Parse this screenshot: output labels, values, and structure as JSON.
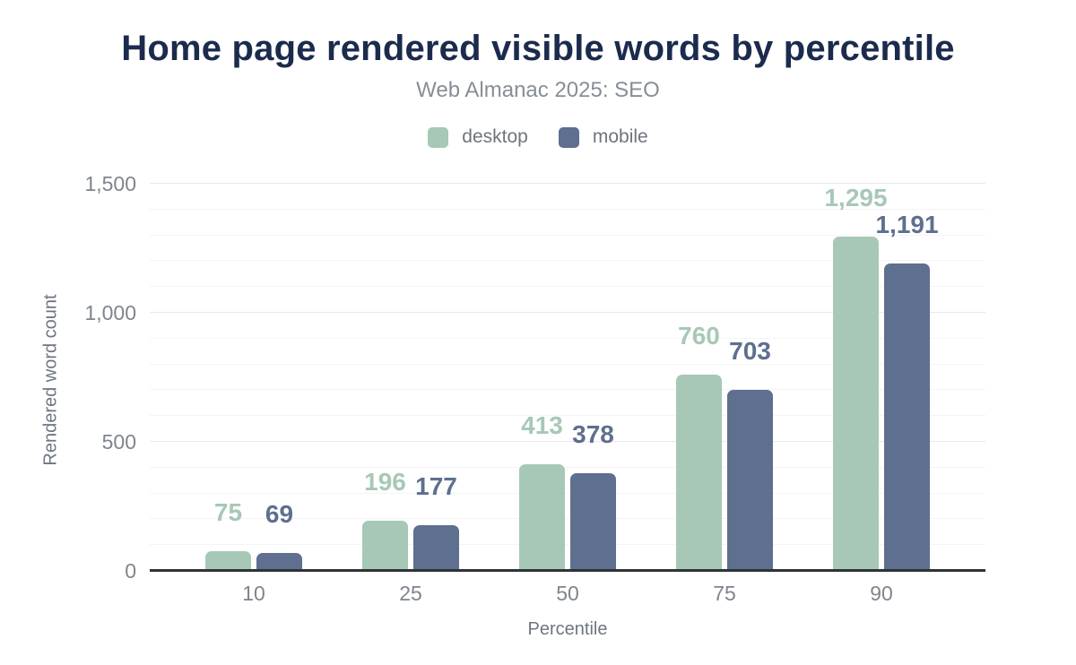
{
  "title": "Home page rendered visible words by percentile",
  "subtitle": "Web Almanac 2025: SEO",
  "legend": [
    {
      "label": "desktop",
      "color": "#a7c8b6"
    },
    {
      "label": "mobile",
      "color": "#5e6f8f"
    }
  ],
  "chart_data": {
    "type": "bar",
    "title": "Home page rendered visible words by percentile",
    "subtitle": "Web Almanac 2025: SEO",
    "categories": [
      "10",
      "25",
      "50",
      "75",
      "90"
    ],
    "series": [
      {
        "name": "desktop",
        "color": "#a7c8b6",
        "values": [
          75,
          196,
          413,
          760,
          1295
        ],
        "labels": [
          "75",
          "196",
          "413",
          "760",
          "1,295"
        ]
      },
      {
        "name": "mobile",
        "color": "#5e6f8f",
        "values": [
          69,
          177,
          378,
          703,
          1191
        ],
        "labels": [
          "69",
          "177",
          "378",
          "703",
          "1,191"
        ]
      }
    ],
    "xlabel": "Percentile",
    "ylabel": "Rendered word count",
    "ylim": [
      0,
      1500
    ],
    "yticks": [
      {
        "value": 0,
        "label": "0"
      },
      {
        "value": 500,
        "label": "500"
      },
      {
        "value": 1000,
        "label": "1,000"
      },
      {
        "value": 1500,
        "label": "1,500"
      }
    ],
    "minor_grid_step": 100,
    "grid": true,
    "legend_position": "top"
  },
  "colors": {
    "title": "#1b2b4d",
    "subtitle": "#878e96",
    "legend_text": "#6e757e",
    "tick_text": "#7e858d",
    "axis_title_text": "#6f7681",
    "major_grid": "#e7e9ea",
    "minor_grid": "#f3f4f5",
    "axis_line": "#303335",
    "background": "#ffffff"
  }
}
